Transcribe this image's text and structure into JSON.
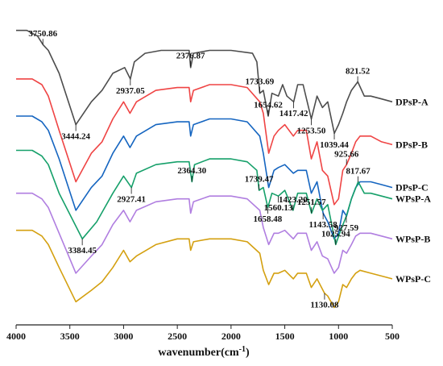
{
  "chart_data": {
    "type": "line",
    "xlabel": "wavenumber(cm",
    "xlabel_superscript": "-1",
    "xlabel_suffix": ")",
    "xlim": [
      4000,
      500
    ],
    "x_reversed": true,
    "xticks": [
      "4000",
      "3500",
      "3000",
      "2500",
      "2000",
      "1500",
      "1000",
      "500"
    ],
    "ylabel": "",
    "series": [
      {
        "name": "DPsP-A",
        "color": "#4d4d4d",
        "points": [
          [
            4000,
            0.95
          ],
          [
            3900,
            0.95
          ],
          [
            3800,
            0.93
          ],
          [
            3750,
            0.9
          ],
          [
            3700,
            0.88
          ],
          [
            3600,
            0.8
          ],
          [
            3444,
            0.62
          ],
          [
            3300,
            0.7
          ],
          [
            3200,
            0.74
          ],
          [
            3100,
            0.8
          ],
          [
            2990,
            0.82
          ],
          [
            2937,
            0.78
          ],
          [
            2900,
            0.84
          ],
          [
            2800,
            0.87
          ],
          [
            2650,
            0.88
          ],
          [
            2500,
            0.88
          ],
          [
            2390,
            0.88
          ],
          [
            2376,
            0.82
          ],
          [
            2350,
            0.87
          ],
          [
            2200,
            0.88
          ],
          [
            2000,
            0.88
          ],
          [
            1800,
            0.87
          ],
          [
            1760,
            0.84
          ],
          [
            1733,
            0.73
          ],
          [
            1700,
            0.74
          ],
          [
            1654,
            0.65
          ],
          [
            1620,
            0.73
          ],
          [
            1560,
            0.72
          ],
          [
            1520,
            0.76
          ],
          [
            1480,
            0.72
          ],
          [
            1417,
            0.7
          ],
          [
            1380,
            0.76
          ],
          [
            1330,
            0.76
          ],
          [
            1253,
            0.64
          ],
          [
            1200,
            0.72
          ],
          [
            1150,
            0.68
          ],
          [
            1100,
            0.7
          ],
          [
            1039,
            0.59
          ],
          [
            1000,
            0.62
          ],
          [
            960,
            0.66
          ],
          [
            925,
            0.7
          ],
          [
            880,
            0.74
          ],
          [
            821,
            0.77
          ],
          [
            760,
            0.72
          ],
          [
            700,
            0.72
          ],
          [
            600,
            0.71
          ],
          [
            500,
            0.7
          ]
        ]
      },
      {
        "name": "DPsP-B",
        "color": "#ef4444",
        "points": [
          [
            4000,
            0.78
          ],
          [
            3850,
            0.78
          ],
          [
            3760,
            0.76
          ],
          [
            3700,
            0.72
          ],
          [
            3600,
            0.6
          ],
          [
            3444,
            0.42
          ],
          [
            3300,
            0.52
          ],
          [
            3200,
            0.56
          ],
          [
            3100,
            0.64
          ],
          [
            3000,
            0.7
          ],
          [
            2940,
            0.66
          ],
          [
            2880,
            0.7
          ],
          [
            2700,
            0.74
          ],
          [
            2500,
            0.75
          ],
          [
            2390,
            0.75
          ],
          [
            2376,
            0.7
          ],
          [
            2350,
            0.74
          ],
          [
            2200,
            0.76
          ],
          [
            2000,
            0.76
          ],
          [
            1850,
            0.75
          ],
          [
            1733,
            0.7
          ],
          [
            1700,
            0.66
          ],
          [
            1650,
            0.52
          ],
          [
            1600,
            0.58
          ],
          [
            1560,
            0.6
          ],
          [
            1500,
            0.62
          ],
          [
            1420,
            0.58
          ],
          [
            1380,
            0.6
          ],
          [
            1300,
            0.6
          ],
          [
            1253,
            0.5
          ],
          [
            1200,
            0.56
          ],
          [
            1150,
            0.46
          ],
          [
            1100,
            0.44
          ],
          [
            1040,
            0.34
          ],
          [
            1000,
            0.36
          ],
          [
            960,
            0.46
          ],
          [
            925,
            0.48
          ],
          [
            880,
            0.52
          ],
          [
            840,
            0.56
          ],
          [
            800,
            0.58
          ],
          [
            700,
            0.58
          ],
          [
            600,
            0.56
          ],
          [
            500,
            0.55
          ]
        ]
      },
      {
        "name": "DPsP-C",
        "color": "#1565c0",
        "points": [
          [
            4000,
            0.65
          ],
          [
            3850,
            0.65
          ],
          [
            3760,
            0.63
          ],
          [
            3700,
            0.6
          ],
          [
            3600,
            0.5
          ],
          [
            3444,
            0.32
          ],
          [
            3300,
            0.4
          ],
          [
            3200,
            0.44
          ],
          [
            3100,
            0.52
          ],
          [
            3000,
            0.58
          ],
          [
            2940,
            0.54
          ],
          [
            2880,
            0.58
          ],
          [
            2700,
            0.62
          ],
          [
            2500,
            0.63
          ],
          [
            2390,
            0.63
          ],
          [
            2376,
            0.58
          ],
          [
            2350,
            0.62
          ],
          [
            2200,
            0.64
          ],
          [
            2000,
            0.64
          ],
          [
            1850,
            0.63
          ],
          [
            1733,
            0.58
          ],
          [
            1700,
            0.52
          ],
          [
            1650,
            0.4
          ],
          [
            1600,
            0.46
          ],
          [
            1560,
            0.47
          ],
          [
            1500,
            0.48
          ],
          [
            1420,
            0.45
          ],
          [
            1380,
            0.46
          ],
          [
            1300,
            0.46
          ],
          [
            1253,
            0.38
          ],
          [
            1200,
            0.42
          ],
          [
            1143,
            0.31
          ],
          [
            1100,
            0.28
          ],
          [
            1040,
            0.22
          ],
          [
            1000,
            0.24
          ],
          [
            960,
            0.32
          ],
          [
            925,
            0.3
          ],
          [
            880,
            0.36
          ],
          [
            840,
            0.4
          ],
          [
            800,
            0.42
          ],
          [
            700,
            0.42
          ],
          [
            600,
            0.41
          ],
          [
            500,
            0.4
          ]
        ]
      },
      {
        "name": "WPsP-A",
        "color": "#16a06a",
        "points": [
          [
            4000,
            0.53
          ],
          [
            3850,
            0.53
          ],
          [
            3760,
            0.51
          ],
          [
            3700,
            0.48
          ],
          [
            3600,
            0.38
          ],
          [
            3384,
            0.22
          ],
          [
            3250,
            0.28
          ],
          [
            3100,
            0.38
          ],
          [
            3000,
            0.44
          ],
          [
            2927,
            0.4
          ],
          [
            2880,
            0.45
          ],
          [
            2700,
            0.48
          ],
          [
            2500,
            0.49
          ],
          [
            2390,
            0.49
          ],
          [
            2364,
            0.42
          ],
          [
            2340,
            0.48
          ],
          [
            2200,
            0.5
          ],
          [
            2000,
            0.5
          ],
          [
            1850,
            0.49
          ],
          [
            1760,
            0.46
          ],
          [
            1739,
            0.39
          ],
          [
            1700,
            0.4
          ],
          [
            1658,
            0.33
          ],
          [
            1620,
            0.38
          ],
          [
            1560,
            0.37
          ],
          [
            1500,
            0.39
          ],
          [
            1423,
            0.32
          ],
          [
            1380,
            0.38
          ],
          [
            1300,
            0.38
          ],
          [
            1251,
            0.31
          ],
          [
            1200,
            0.36
          ],
          [
            1150,
            0.32
          ],
          [
            1100,
            0.34
          ],
          [
            1026,
            0.2
          ],
          [
            980,
            0.25
          ],
          [
            927,
            0.3
          ],
          [
            880,
            0.36
          ],
          [
            817,
            0.42
          ],
          [
            760,
            0.38
          ],
          [
            700,
            0.38
          ],
          [
            600,
            0.37
          ],
          [
            500,
            0.36
          ]
        ]
      },
      {
        "name": "WPsP-B",
        "color": "#b07ee0",
        "points": [
          [
            4000,
            0.38
          ],
          [
            3850,
            0.38
          ],
          [
            3760,
            0.36
          ],
          [
            3700,
            0.33
          ],
          [
            3600,
            0.24
          ],
          [
            3444,
            0.1
          ],
          [
            3300,
            0.16
          ],
          [
            3200,
            0.2
          ],
          [
            3100,
            0.27
          ],
          [
            3000,
            0.32
          ],
          [
            2940,
            0.28
          ],
          [
            2880,
            0.32
          ],
          [
            2700,
            0.35
          ],
          [
            2500,
            0.36
          ],
          [
            2390,
            0.36
          ],
          [
            2376,
            0.31
          ],
          [
            2350,
            0.35
          ],
          [
            2200,
            0.37
          ],
          [
            2000,
            0.37
          ],
          [
            1850,
            0.36
          ],
          [
            1733,
            0.32
          ],
          [
            1700,
            0.26
          ],
          [
            1650,
            0.2
          ],
          [
            1600,
            0.24
          ],
          [
            1560,
            0.24
          ],
          [
            1500,
            0.25
          ],
          [
            1420,
            0.22
          ],
          [
            1380,
            0.24
          ],
          [
            1300,
            0.24
          ],
          [
            1253,
            0.18
          ],
          [
            1200,
            0.21
          ],
          [
            1150,
            0.16
          ],
          [
            1100,
            0.15
          ],
          [
            1040,
            0.1
          ],
          [
            1000,
            0.12
          ],
          [
            960,
            0.18
          ],
          [
            925,
            0.17
          ],
          [
            880,
            0.2
          ],
          [
            840,
            0.23
          ],
          [
            800,
            0.24
          ],
          [
            700,
            0.24
          ],
          [
            600,
            0.23
          ],
          [
            500,
            0.22
          ]
        ]
      },
      {
        "name": "WPsP-C",
        "color": "#d4a010",
        "points": [
          [
            4000,
            0.25
          ],
          [
            3850,
            0.25
          ],
          [
            3760,
            0.23
          ],
          [
            3700,
            0.2
          ],
          [
            3600,
            0.12
          ],
          [
            3444,
            0.0
          ],
          [
            3300,
            0.04
          ],
          [
            3200,
            0.07
          ],
          [
            3100,
            0.12
          ],
          [
            3000,
            0.18
          ],
          [
            2940,
            0.14
          ],
          [
            2880,
            0.16
          ],
          [
            2700,
            0.2
          ],
          [
            2500,
            0.22
          ],
          [
            2390,
            0.22
          ],
          [
            2376,
            0.18
          ],
          [
            2350,
            0.21
          ],
          [
            2200,
            0.22
          ],
          [
            2000,
            0.22
          ],
          [
            1850,
            0.21
          ],
          [
            1733,
            0.17
          ],
          [
            1700,
            0.11
          ],
          [
            1650,
            0.06
          ],
          [
            1600,
            0.1
          ],
          [
            1560,
            0.1
          ],
          [
            1500,
            0.11
          ],
          [
            1420,
            0.08
          ],
          [
            1380,
            0.1
          ],
          [
            1300,
            0.1
          ],
          [
            1253,
            0.05
          ],
          [
            1200,
            0.08
          ],
          [
            1130,
            0.03
          ],
          [
            1100,
            0.02
          ],
          [
            1040,
            -0.02
          ],
          [
            1000,
            0.0
          ],
          [
            960,
            0.06
          ],
          [
            925,
            0.05
          ],
          [
            880,
            0.08
          ],
          [
            840,
            0.1
          ],
          [
            800,
            0.11
          ],
          [
            700,
            0.1
          ],
          [
            600,
            0.09
          ],
          [
            500,
            0.08
          ]
        ]
      }
    ],
    "annotations": [
      {
        "text": "3750.86",
        "x": 3750.86,
        "series": "DPsP-A"
      },
      {
        "text": "2937.05",
        "x": 2937.05,
        "series": "DPsP-A"
      },
      {
        "text": "2376.87",
        "x": 2376.87,
        "series": "DPsP-A"
      },
      {
        "text": "3444.24",
        "x": 3444.24,
        "series": "DPsP-A"
      },
      {
        "text": "1733.69",
        "x": 1733.69,
        "series": "DPsP-A"
      },
      {
        "text": "1417.42",
        "x": 1417.42,
        "series": "DPsP-A"
      },
      {
        "text": "821.52",
        "x": 821.52,
        "series": "DPsP-A"
      },
      {
        "text": "1039.44",
        "x": 1039.44,
        "series": "DPsP-A"
      },
      {
        "text": "1654.62",
        "x": 1654.62,
        "series": "DPsP-A"
      },
      {
        "text": "1253.50",
        "x": 1253.5,
        "series": "DPsP-A"
      },
      {
        "text": "925.66",
        "x": 925.66,
        "series": "DPsP-B"
      },
      {
        "text": "1143.58",
        "x": 1143.58,
        "series": "DPsP-C"
      },
      {
        "text": "2364.30",
        "x": 2364.3,
        "series": "WPsP-A"
      },
      {
        "text": "2927.41",
        "x": 2927.41,
        "series": "WPsP-A"
      },
      {
        "text": "1739.47",
        "x": 1739.47,
        "series": "WPsP-A"
      },
      {
        "text": "1560.13",
        "x": 1560.13,
        "series": "WPsP-A"
      },
      {
        "text": "817.67",
        "x": 817.67,
        "series": "WPsP-A"
      },
      {
        "text": "3384.45",
        "x": 3384.45,
        "series": "WPsP-A"
      },
      {
        "text": "1251.57",
        "x": 1251.57,
        "series": "WPsP-A"
      },
      {
        "text": "1658.48",
        "x": 1658.48,
        "series": "WPsP-A"
      },
      {
        "text": "1423.20",
        "x": 1423.2,
        "series": "WPsP-A"
      },
      {
        "text": "927.59",
        "x": 927.59,
        "series": "WPsP-A"
      },
      {
        "text": "1025.94",
        "x": 1025.94,
        "series": "WPsP-A"
      },
      {
        "text": "1130.08",
        "x": 1130.08,
        "series": "WPsP-C"
      }
    ],
    "grid": false,
    "legend": "series labels at right end of each curve"
  }
}
